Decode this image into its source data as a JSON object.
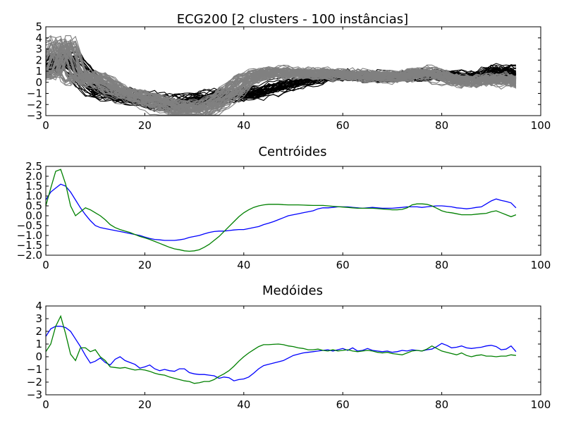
{
  "figure": {
    "background": "#ffffff",
    "colors": {
      "cluster_a": "#000000",
      "cluster_b": "#808080",
      "series_1": "#0000ff",
      "series_2": "#008000"
    }
  },
  "chart_data": [
    {
      "type": "line",
      "title": "ECG200 [2 clusters - 100 instâncias]",
      "xlabel": "",
      "ylabel": "",
      "xlim": [
        0,
        100
      ],
      "ylim": [
        -3,
        5
      ],
      "xticks": [
        "0",
        "20",
        "40",
        "60",
        "80",
        "100"
      ],
      "yticks": [
        "5",
        "4",
        "3",
        "2",
        "1",
        "0",
        "−1",
        "−2",
        "−3"
      ],
      "grid": false,
      "note_series": "100 overlapping instances in 2 clusters, drawn as a band of lines; exact per-instance values not readable",
      "series": [
        {
          "cluster": 1,
          "color": "#000000",
          "count": 38,
          "base": "centroid_1"
        },
        {
          "cluster": 2,
          "color": "#808080",
          "count": 62,
          "base": "centroid_2"
        }
      ]
    },
    {
      "type": "line",
      "title": "Centróides",
      "xlabel": "",
      "ylabel": "",
      "xlim": [
        0,
        100
      ],
      "ylim": [
        -2,
        2.5
      ],
      "xticks": [
        "0",
        "20",
        "40",
        "60",
        "80",
        "100"
      ],
      "yticks": [
        "2.5",
        "2.0",
        "1.5",
        "1.0",
        "0.5",
        "0.0",
        "−0.5",
        "−1.0",
        "−1.5",
        "−2.0"
      ],
      "grid": false,
      "x": [
        0,
        1,
        2,
        3,
        4,
        5,
        6,
        7,
        8,
        9,
        10,
        11,
        12,
        13,
        14,
        15,
        16,
        17,
        18,
        19,
        20,
        21,
        22,
        23,
        24,
        25,
        26,
        27,
        28,
        29,
        30,
        31,
        32,
        33,
        34,
        35,
        36,
        37,
        38,
        39,
        40,
        41,
        42,
        43,
        44,
        45,
        46,
        47,
        48,
        49,
        50,
        51,
        52,
        53,
        54,
        55,
        56,
        57,
        58,
        59,
        60,
        61,
        62,
        63,
        64,
        65,
        66,
        67,
        68,
        69,
        70,
        71,
        72,
        73,
        74,
        75,
        76,
        77,
        78,
        79,
        80,
        81,
        82,
        83,
        84,
        85,
        86,
        87,
        88,
        89,
        90,
        91,
        92,
        93,
        94,
        95
      ],
      "series": [
        {
          "color": "#0000ff",
          "values": [
            0.8,
            1.2,
            1.4,
            1.6,
            1.5,
            1.2,
            0.8,
            0.4,
            0.05,
            -0.25,
            -0.5,
            -0.6,
            -0.65,
            -0.7,
            -0.75,
            -0.8,
            -0.85,
            -0.9,
            -0.95,
            -1.0,
            -1.08,
            -1.15,
            -1.2,
            -1.22,
            -1.25,
            -1.25,
            -1.25,
            -1.22,
            -1.18,
            -1.1,
            -1.05,
            -1.0,
            -0.92,
            -0.85,
            -0.8,
            -0.78,
            -0.78,
            -0.75,
            -0.72,
            -0.7,
            -0.7,
            -0.65,
            -0.6,
            -0.55,
            -0.45,
            -0.38,
            -0.3,
            -0.2,
            -0.1,
            0.0,
            0.05,
            0.1,
            0.15,
            0.2,
            0.25,
            0.35,
            0.4,
            0.4,
            0.42,
            0.45,
            0.45,
            0.45,
            0.42,
            0.4,
            0.38,
            0.4,
            0.42,
            0.4,
            0.38,
            0.38,
            0.38,
            0.4,
            0.42,
            0.45,
            0.45,
            0.45,
            0.42,
            0.45,
            0.48,
            0.5,
            0.5,
            0.48,
            0.45,
            0.4,
            0.38,
            0.35,
            0.38,
            0.42,
            0.45,
            0.6,
            0.75,
            0.85,
            0.78,
            0.72,
            0.65,
            0.4
          ]
        },
        {
          "color": "#008000",
          "values": [
            0.5,
            1.4,
            2.25,
            2.35,
            1.6,
            0.5,
            0.0,
            0.2,
            0.4,
            0.3,
            0.15,
            0.0,
            -0.2,
            -0.45,
            -0.6,
            -0.7,
            -0.78,
            -0.85,
            -0.95,
            -1.05,
            -1.12,
            -1.2,
            -1.3,
            -1.4,
            -1.5,
            -1.6,
            -1.68,
            -1.72,
            -1.78,
            -1.8,
            -1.78,
            -1.72,
            -1.6,
            -1.45,
            -1.25,
            -1.05,
            -0.8,
            -0.55,
            -0.3,
            -0.05,
            0.15,
            0.3,
            0.42,
            0.5,
            0.55,
            0.58,
            0.58,
            0.58,
            0.56,
            0.55,
            0.55,
            0.55,
            0.54,
            0.53,
            0.52,
            0.52,
            0.52,
            0.5,
            0.48,
            0.46,
            0.44,
            0.42,
            0.4,
            0.38,
            0.38,
            0.38,
            0.38,
            0.36,
            0.34,
            0.32,
            0.3,
            0.3,
            0.32,
            0.4,
            0.55,
            0.6,
            0.6,
            0.58,
            0.5,
            0.38,
            0.25,
            0.18,
            0.15,
            0.1,
            0.05,
            0.05,
            0.05,
            0.08,
            0.1,
            0.12,
            0.2,
            0.25,
            0.15,
            0.05,
            -0.05,
            0.05
          ]
        }
      ]
    },
    {
      "type": "line",
      "title": "Medóides",
      "xlabel": "",
      "ylabel": "",
      "xlim": [
        0,
        100
      ],
      "ylim": [
        -3,
        4
      ],
      "xticks": [
        "0",
        "20",
        "40",
        "60",
        "80",
        "100"
      ],
      "yticks": [
        "4",
        "3",
        "2",
        "1",
        "0",
        "−1",
        "−2",
        "−3"
      ],
      "grid": false,
      "x": [
        0,
        1,
        2,
        3,
        4,
        5,
        6,
        7,
        8,
        9,
        10,
        11,
        12,
        13,
        14,
        15,
        16,
        17,
        18,
        19,
        20,
        21,
        22,
        23,
        24,
        25,
        26,
        27,
        28,
        29,
        30,
        31,
        32,
        33,
        34,
        35,
        36,
        37,
        38,
        39,
        40,
        41,
        42,
        43,
        44,
        45,
        46,
        47,
        48,
        49,
        50,
        51,
        52,
        53,
        54,
        55,
        56,
        57,
        58,
        59,
        60,
        61,
        62,
        63,
        64,
        65,
        66,
        67,
        68,
        69,
        70,
        71,
        72,
        73,
        74,
        75,
        76,
        77,
        78,
        79,
        80,
        81,
        82,
        83,
        84,
        85,
        86,
        87,
        88,
        89,
        90,
        91,
        92,
        93,
        94,
        95
      ],
      "series": [
        {
          "color": "#0000ff",
          "values": [
            1.6,
            2.2,
            2.4,
            2.4,
            2.3,
            2.0,
            1.4,
            0.8,
            0.1,
            -0.5,
            -0.35,
            -0.1,
            -0.45,
            -0.65,
            -0.2,
            0.0,
            -0.3,
            -0.45,
            -0.6,
            -0.9,
            -0.8,
            -0.65,
            -0.95,
            -1.1,
            -1.0,
            -1.1,
            -1.15,
            -0.95,
            -0.95,
            -1.25,
            -1.35,
            -1.4,
            -1.4,
            -1.45,
            -1.5,
            -1.7,
            -1.6,
            -1.65,
            -1.9,
            -1.8,
            -1.75,
            -1.6,
            -1.3,
            -0.95,
            -0.7,
            -0.6,
            -0.5,
            -0.4,
            -0.3,
            -0.1,
            0.1,
            0.2,
            0.3,
            0.35,
            0.4,
            0.45,
            0.5,
            0.55,
            0.45,
            0.55,
            0.65,
            0.5,
            0.7,
            0.45,
            0.5,
            0.65,
            0.5,
            0.45,
            0.4,
            0.45,
            0.35,
            0.4,
            0.5,
            0.45,
            0.55,
            0.5,
            0.45,
            0.55,
            0.6,
            0.8,
            1.05,
            0.9,
            0.7,
            0.75,
            0.85,
            0.7,
            0.65,
            0.7,
            0.75,
            0.85,
            0.9,
            0.8,
            0.55,
            0.6,
            0.85,
            0.4
          ]
        },
        {
          "color": "#008000",
          "values": [
            0.4,
            1.0,
            2.4,
            3.2,
            1.8,
            0.2,
            -0.3,
            0.7,
            0.7,
            0.4,
            0.55,
            0.0,
            -0.3,
            -0.8,
            -0.85,
            -0.9,
            -0.85,
            -0.95,
            -1.05,
            -1.0,
            -1.05,
            -1.15,
            -1.3,
            -1.4,
            -1.45,
            -1.6,
            -1.7,
            -1.8,
            -1.9,
            -1.95,
            -2.1,
            -2.05,
            -1.95,
            -1.95,
            -1.8,
            -1.55,
            -1.35,
            -1.1,
            -0.75,
            -0.35,
            0.0,
            0.3,
            0.55,
            0.8,
            0.95,
            0.95,
            0.98,
            1.0,
            0.95,
            0.85,
            0.8,
            0.7,
            0.65,
            0.55,
            0.55,
            0.6,
            0.5,
            0.45,
            0.55,
            0.45,
            0.5,
            0.55,
            0.45,
            0.4,
            0.45,
            0.5,
            0.45,
            0.35,
            0.3,
            0.35,
            0.25,
            0.2,
            0.15,
            0.3,
            0.45,
            0.5,
            0.45,
            0.6,
            0.85,
            0.65,
            0.45,
            0.35,
            0.25,
            0.15,
            0.3,
            0.1,
            0.0,
            0.1,
            0.15,
            0.05,
            0.05,
            0.0,
            0.05,
            0.05,
            0.15,
            0.1
          ]
        }
      ]
    }
  ]
}
